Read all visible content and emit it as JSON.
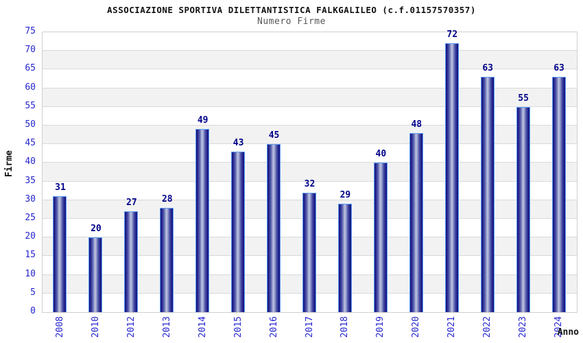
{
  "header": {
    "title": "ASSOCIAZIONE SPORTIVA DILETTANTISTICA FALKGALILEO (c.f.01157570357)",
    "subtitle": "Numero Firme"
  },
  "chart_data": {
    "type": "bar",
    "title": "Numero Firme",
    "categories": [
      "2008",
      "2010",
      "2012",
      "2013",
      "2014",
      "2015",
      "2016",
      "2017",
      "2018",
      "2019",
      "2020",
      "2021",
      "2022",
      "2023",
      "2024"
    ],
    "values": [
      31,
      20,
      27,
      28,
      49,
      43,
      45,
      32,
      29,
      40,
      48,
      72,
      63,
      55,
      63
    ],
    "xlabel": "Anno",
    "ylabel": "Firme",
    "ylim": [
      0,
      75
    ],
    "ytick_step": 5,
    "yticks": [
      0,
      5,
      10,
      15,
      20,
      25,
      30,
      35,
      40,
      45,
      50,
      55,
      60,
      65,
      70,
      75
    ],
    "grid": true,
    "legend": "none",
    "colors": {
      "bar_dark": "#15157c",
      "bar_highlight": "#c0c5e0",
      "bar_outline": "#5b9cf5",
      "value_label": "#00008b",
      "tick_label": "#2525cf",
      "band_fill": "#f2f2f2",
      "gridline": "#d9d9d9",
      "plot_border": "#cfcfcf",
      "title_text": "#111111",
      "subtitle_text": "#555555"
    }
  }
}
